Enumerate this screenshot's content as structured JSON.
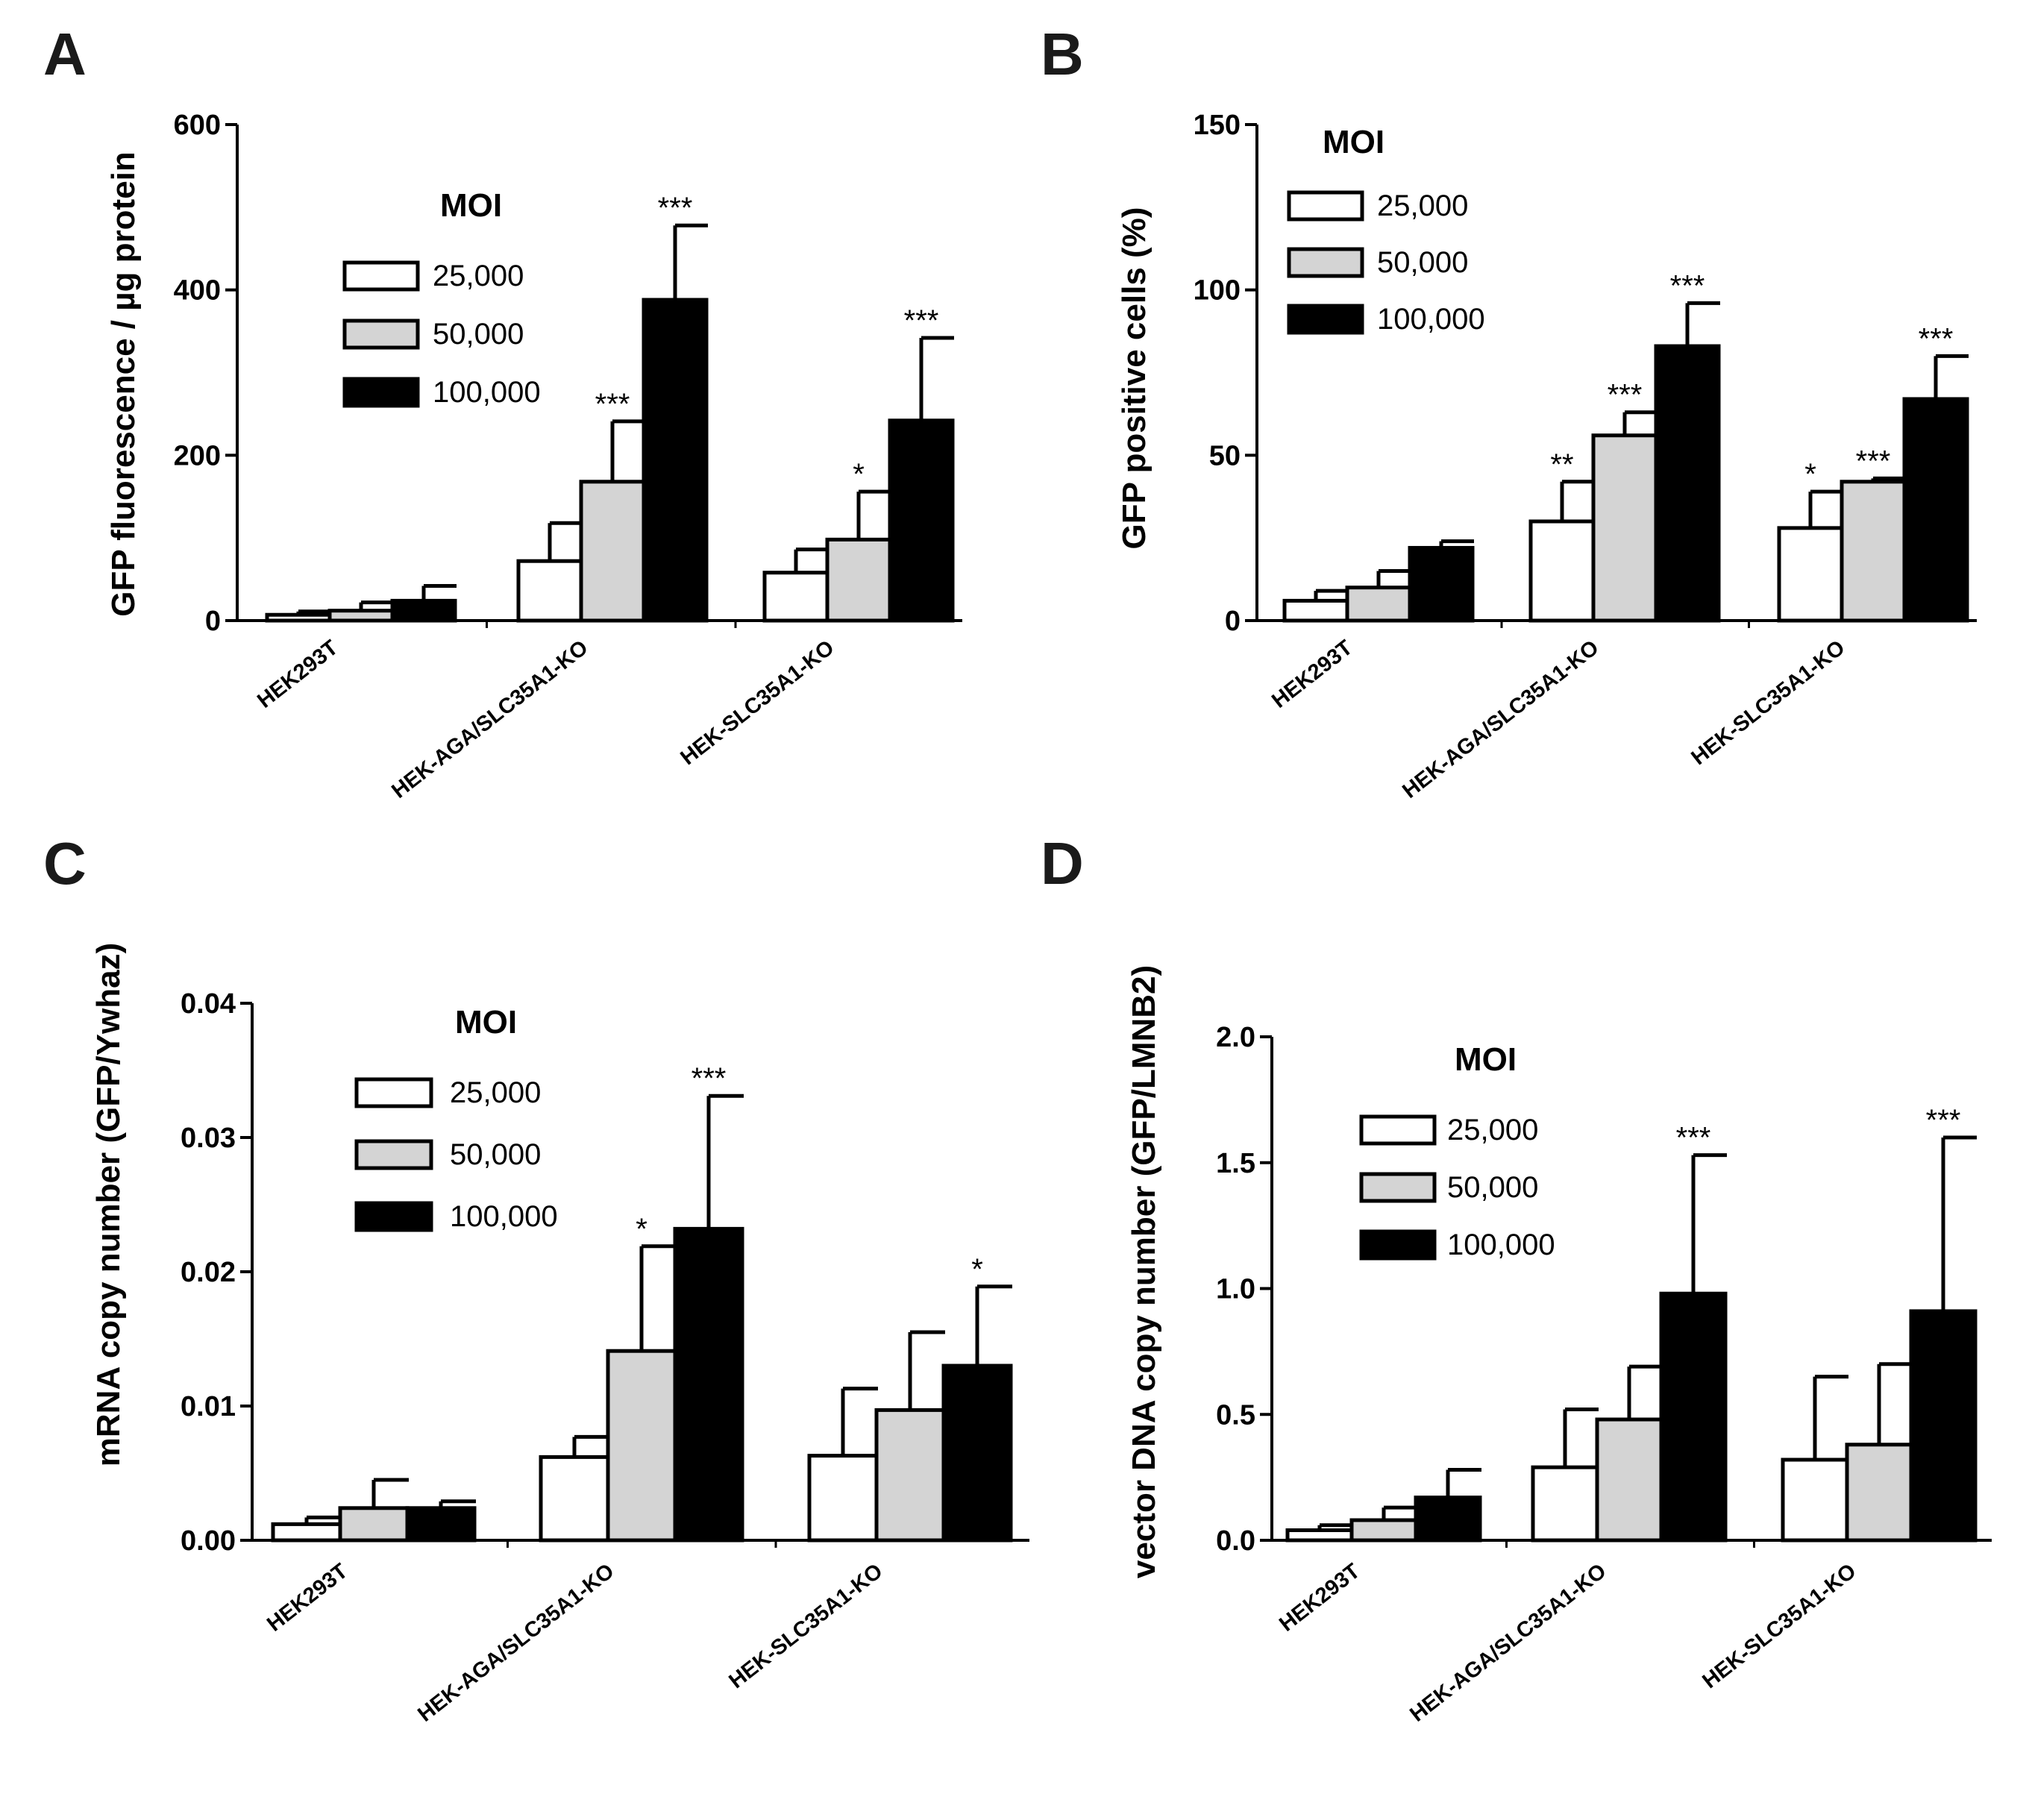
{
  "chart_data": [
    {
      "panel": "A",
      "type": "bar",
      "categories": [
        "HEK293T",
        "HEK-AGA/SLC35A1-KO",
        "HEK-SLC35A1-KO"
      ],
      "ylabel": "GFP fluorescence / µg protein",
      "ylim": [
        0,
        600
      ],
      "yticks": [
        "0",
        "200",
        "400",
        "600"
      ],
      "legend_title": "MOI",
      "series": [
        {
          "name": "25,000",
          "color": "#ffffff",
          "values": [
            7,
            72,
            58
          ],
          "errors": [
            4,
            46,
            28
          ],
          "sig": [
            "",
            "",
            ""
          ]
        },
        {
          "name": "50,000",
          "color": "#d4d4d4",
          "values": [
            12,
            168,
            98
          ],
          "errors": [
            10,
            73,
            58
          ],
          "sig": [
            "",
            "***",
            "*"
          ]
        },
        {
          "name": "100,000",
          "color": "#000000",
          "values": [
            24,
            388,
            242
          ],
          "errors": [
            18,
            90,
            100
          ],
          "sig": [
            "",
            "***",
            "***"
          ]
        }
      ]
    },
    {
      "panel": "B",
      "type": "bar",
      "categories": [
        "HEK293T",
        "HEK-AGA/SLC35A1-KO",
        "HEK-SLC35A1-KO"
      ],
      "ylabel": "GFP positive cells (%)",
      "ylim": [
        0,
        150
      ],
      "yticks": [
        "0",
        "50",
        "100",
        "150"
      ],
      "legend_title": "MOI",
      "series": [
        {
          "name": "25,000",
          "color": "#ffffff",
          "values": [
            6,
            30,
            28
          ],
          "errors": [
            3,
            12,
            11
          ],
          "sig": [
            "",
            "**",
            "*"
          ]
        },
        {
          "name": "50,000",
          "color": "#d4d4d4",
          "values": [
            10,
            56,
            42
          ],
          "errors": [
            5,
            7,
            1
          ],
          "sig": [
            "",
            "***",
            "***"
          ]
        },
        {
          "name": "100,000",
          "color": "#000000",
          "values": [
            22,
            83,
            67
          ],
          "errors": [
            2,
            13,
            13
          ],
          "sig": [
            "",
            "***",
            "***"
          ]
        }
      ]
    },
    {
      "panel": "C",
      "type": "bar",
      "categories": [
        "HEK293T",
        "HEK-AGA/SLC35A1-KO",
        "HEK-SLC35A1-KO"
      ],
      "ylabel": "mRNA copy number (GFP/Ywhaz)",
      "ylim": [
        0,
        0.04
      ],
      "yticks": [
        "0.00",
        "0.01",
        "0.02",
        "0.03",
        "0.04"
      ],
      "legend_title": "MOI",
      "series": [
        {
          "name": "25,000",
          "color": "#ffffff",
          "values": [
            0.0012,
            0.0062,
            0.0063
          ],
          "errors": [
            0.0005,
            0.0015,
            0.005
          ],
          "sig": [
            "",
            "",
            ""
          ]
        },
        {
          "name": "50,000",
          "color": "#d4d4d4",
          "values": [
            0.0024,
            0.0141,
            0.0097
          ],
          "errors": [
            0.0021,
            0.0078,
            0.0058
          ],
          "sig": [
            "",
            "*",
            ""
          ]
        },
        {
          "name": "100,000",
          "color": "#000000",
          "values": [
            0.0024,
            0.0232,
            0.013
          ],
          "errors": [
            0.0005,
            0.0099,
            0.0059
          ],
          "sig": [
            "",
            "***",
            "*"
          ]
        }
      ]
    },
    {
      "panel": "D",
      "type": "bar",
      "categories": [
        "HEK293T",
        "HEK-AGA/SLC35A1-KO",
        "HEK-SLC35A1-KO"
      ],
      "ylabel": "vector DNA copy number (GFP/LMNB2)",
      "ylim": [
        0,
        2.0
      ],
      "yticks": [
        "0.0",
        "0.5",
        "1.0",
        "1.5",
        "2.0"
      ],
      "legend_title": "MOI",
      "series": [
        {
          "name": "25,000",
          "color": "#ffffff",
          "values": [
            0.04,
            0.29,
            0.32
          ],
          "errors": [
            0.02,
            0.23,
            0.33
          ],
          "sig": [
            "",
            "",
            ""
          ]
        },
        {
          "name": "50,000",
          "color": "#d4d4d4",
          "values": [
            0.08,
            0.48,
            0.38
          ],
          "errors": [
            0.05,
            0.21,
            0.32
          ],
          "sig": [
            "",
            "",
            ""
          ]
        },
        {
          "name": "100,000",
          "color": "#000000",
          "values": [
            0.17,
            0.98,
            0.91
          ],
          "errors": [
            0.11,
            0.55,
            0.69
          ],
          "sig": [
            "",
            "***",
            "***"
          ]
        }
      ]
    }
  ]
}
